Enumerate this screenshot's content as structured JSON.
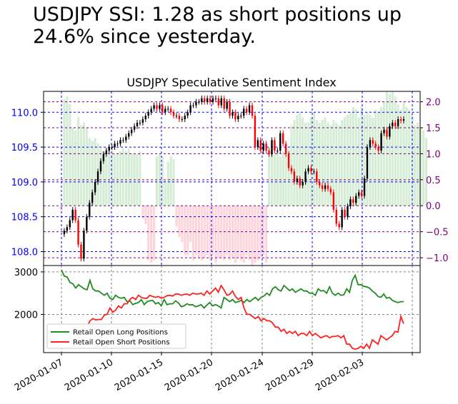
{
  "headline": "USDJPY SSI: 1.28 as short positions up 24.6% since yesterday.",
  "chart_data": [
    {
      "type": "candlestick+bar",
      "title": "USDJPY Speculative Sentiment Index",
      "x_tick_labels": [
        "2020-01-07",
        "2020-01-10",
        "2020-01-15",
        "2020-01-20",
        "2020-01-24",
        "2020-01-29",
        "2020-02-03"
      ],
      "y_left": {
        "ticks": [
          "108.0",
          "108.5",
          "109.0",
          "109.5",
          "110.0"
        ],
        "range": [
          107.8,
          110.3
        ],
        "color": "#0000ff"
      },
      "y_right": {
        "ticks": [
          "−1.0",
          "−0.5",
          "0.0",
          "0.5",
          "1.0",
          "1.5",
          "2.0"
        ],
        "range": [
          -1.15,
          2.2
        ],
        "color": "#800080"
      },
      "bar_colors": {
        "positive": "#d5ecd5",
        "negative": "#ffd5dc"
      },
      "candle_colors": {
        "up": "#000000",
        "down": "#ff0000"
      },
      "sentiment": [
        -0.1,
        2.05,
        2.1,
        1.95,
        1.5,
        1.45,
        1.7,
        1.55,
        1.6,
        1.5,
        1.3,
        1.25,
        1.3,
        1.2,
        1.1,
        1.05,
        1.1,
        1.0,
        1.05,
        1.0,
        1.0,
        1.05,
        1.1,
        1.05,
        1.1,
        1.0,
        1.0,
        1.0,
        1.05,
        -0.25,
        -0.35,
        -1.05,
        -1.1,
        -1.05,
        0.95,
        1.0,
        0.95,
        0.5,
        0.85,
        0.95,
        0.9,
        -0.4,
        -0.6,
        -0.7,
        -0.95,
        -0.95,
        -0.7,
        -1.05,
        -0.95,
        -1.0,
        -1.05,
        -1.0,
        -0.95,
        -1.05,
        -0.95,
        -1.1,
        -1.0,
        -1.0,
        -1.05,
        -0.95,
        -1.05,
        -1.0,
        -1.1,
        -1.0,
        -1.05,
        -1.1,
        -0.95,
        -1.05,
        -1.15,
        -1.1,
        -1.05,
        -1.0,
        -0.95,
        -1.1,
        1.0,
        1.05,
        1.0,
        1.05,
        0.95,
        1.05,
        1.0,
        1.1,
        1.55,
        1.65,
        1.75,
        1.8,
        1.7,
        1.6,
        1.6,
        1.7,
        1.8,
        1.65,
        1.6,
        1.65,
        1.7,
        1.6,
        1.55,
        1.65,
        1.6,
        1.55,
        1.65,
        1.7,
        1.75,
        1.8,
        1.9,
        1.85,
        1.7,
        1.9,
        1.75,
        1.8,
        1.75,
        1.7,
        1.85,
        1.8,
        1.9,
        2.0,
        2.2,
        2.15,
        2.2,
        2.1,
        1.95,
        1.85,
        2.0,
        1.9,
        1.85,
        1.75,
        1.55,
        1.6,
        1.5,
        1.45,
        1.3
      ],
      "price": [
        108.25,
        108.3,
        108.35,
        108.45,
        108.6,
        108.45,
        108.1,
        107.9,
        108.3,
        108.5,
        108.7,
        108.85,
        109.0,
        109.15,
        109.3,
        109.4,
        109.45,
        109.5,
        109.5,
        109.55,
        109.55,
        109.6,
        109.6,
        109.65,
        109.7,
        109.75,
        109.8,
        109.85,
        109.85,
        109.9,
        109.95,
        110.0,
        110.05,
        110.1,
        110.05,
        110.1,
        110.0,
        110.05,
        110.05,
        110.0,
        109.95,
        109.95,
        109.9,
        109.9,
        109.95,
        110.0,
        110.1,
        110.1,
        110.15,
        110.15,
        110.2,
        110.15,
        110.2,
        110.15,
        110.2,
        110.2,
        110.1,
        110.2,
        110.05,
        110.15,
        109.95,
        110.0,
        109.9,
        109.95,
        109.95,
        110.05,
        110.0,
        110.1,
        109.95,
        109.5,
        109.6,
        109.45,
        109.55,
        109.45,
        109.4,
        109.6,
        109.45,
        109.45,
        109.7,
        109.55,
        109.4,
        109.2,
        109.15,
        109.0,
        109.05,
        108.95,
        109.0,
        109.15,
        109.2,
        109.15,
        109.15,
        109.0,
        108.95,
        108.9,
        108.95,
        108.9,
        108.85,
        108.6,
        108.4,
        108.35,
        108.6,
        108.5,
        108.65,
        108.75,
        108.7,
        108.8,
        108.85,
        108.8,
        109.05,
        109.5,
        109.6,
        109.55,
        109.5,
        109.45,
        109.7,
        109.75,
        109.65,
        109.8,
        109.85,
        109.8,
        109.9,
        109.88,
        109.9
      ]
    },
    {
      "type": "line",
      "y_ticks": [
        "2000",
        "3000"
      ],
      "ylim": [
        1100,
        3150
      ],
      "x_tick_labels": [
        "2020-01-07",
        "2020-01-10",
        "2020-01-15",
        "2020-01-20",
        "2020-01-24",
        "2020-01-29",
        "2020-02-03"
      ],
      "series": [
        {
          "name": "Retail Open Long Positions",
          "color": "#228b22",
          "values": [
            3050,
            2900,
            2880,
            2750,
            2720,
            2620,
            2700,
            2650,
            2600,
            2580,
            2800,
            2600,
            2550,
            2550,
            2500,
            2450,
            2500,
            2380,
            2350,
            2450,
            2400,
            2380,
            2400,
            2300,
            2320,
            2230,
            2260,
            2280,
            2350,
            2230,
            2300,
            2320,
            2330,
            2250,
            2280,
            2200,
            2350,
            2230,
            2250,
            2250,
            2320,
            2270,
            2180,
            2200,
            2250,
            2220,
            2230,
            2180,
            2200,
            2230,
            2150,
            2220,
            2280,
            2200,
            2230,
            2200,
            2150,
            2400,
            2350,
            2300,
            2350,
            2280,
            2300,
            2330,
            2280,
            2350,
            2300,
            2350,
            2400,
            2330,
            2400,
            2430,
            2500,
            2450,
            2600,
            2650,
            2580,
            2550,
            2680,
            2620,
            2560,
            2600,
            2520,
            2560,
            2600,
            2550,
            2550,
            2500,
            2500,
            2450,
            2600,
            2550,
            2560,
            2500,
            2650,
            2500,
            2450,
            2500,
            2450,
            2460,
            2600,
            2520,
            2800,
            2920,
            2700,
            2700,
            2660,
            2650,
            2620,
            2550,
            2500,
            2420,
            2400,
            2480,
            2380,
            2400,
            2330,
            2300,
            2280,
            2300,
            2300
          ]
        },
        {
          "name": "Retail Open Short Positions",
          "color": "#ff2020",
          "values": [
            1500,
            1450,
            1500,
            1450,
            1470,
            1430,
            1490,
            1550,
            1620,
            1700,
            1850,
            1900,
            1870,
            1880,
            1880,
            1980,
            2000,
            2150,
            2050,
            2100,
            2200,
            2150,
            2250,
            2250,
            2350,
            2400,
            2350,
            2450,
            2400,
            2380,
            2380,
            2450,
            2420,
            2400,
            2420,
            2380,
            2400,
            2440,
            2450,
            2430,
            2480,
            2480,
            2450,
            2470,
            2480,
            2450,
            2500,
            2480,
            2480,
            2500,
            2450,
            2550,
            2480,
            2550,
            2620,
            2520,
            2680,
            2580,
            2450,
            2470,
            2550,
            2420,
            2350,
            2400,
            2150,
            2000,
            2000,
            1950,
            1900,
            1950,
            1850,
            1900,
            1850,
            1850,
            1800,
            1700,
            1700,
            1600,
            1650,
            1550,
            1600,
            1550,
            1600,
            1500,
            1550,
            1550,
            1500,
            1600,
            1500,
            1550,
            1500,
            1450,
            1480,
            1500,
            1450,
            1480,
            1480,
            1500,
            1450,
            1500,
            1300,
            1300,
            1200,
            1180,
            1200,
            1250,
            1200,
            1300,
            1200,
            1400,
            1350,
            1300,
            1500,
            1450,
            1400,
            1450,
            1500,
            1600,
            1580,
            1950,
            1780
          ]
        }
      ],
      "legend": {
        "placement": "lower-left"
      }
    }
  ]
}
